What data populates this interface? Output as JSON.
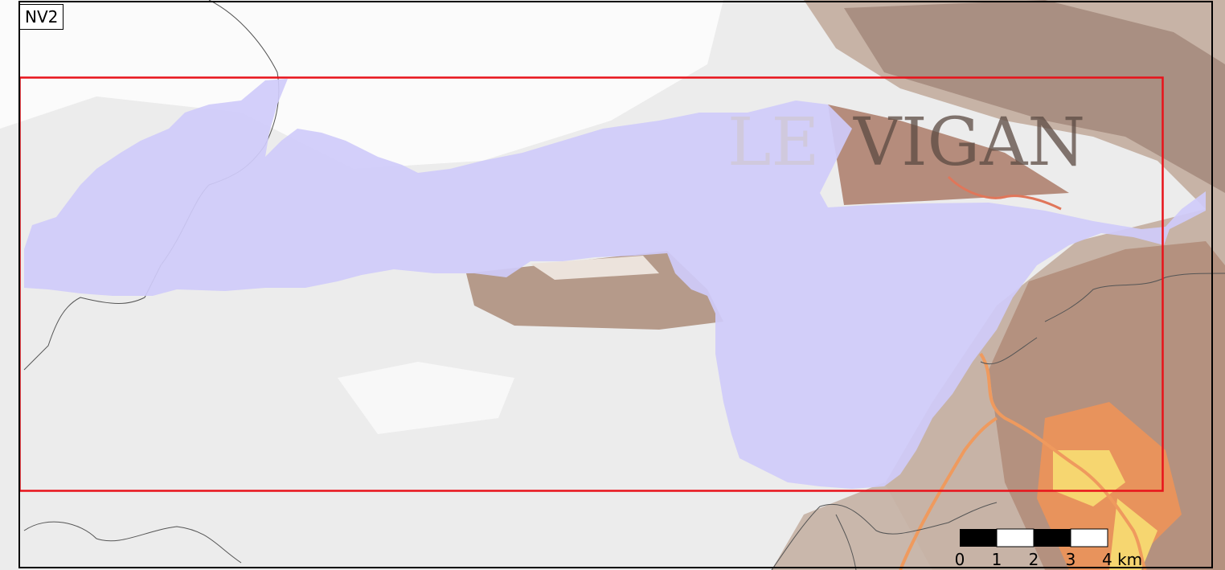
{
  "map": {
    "panel_label": "NV2",
    "town_label_part1": "LE",
    "town_label_part2": "VIGAN",
    "scale_bar": {
      "ticks": [
        "0",
        "1",
        "2",
        "3",
        "4 km"
      ]
    },
    "colors": {
      "study_area_fill": "#cbc8f7",
      "extent_box": "#e8121a",
      "boundary_lines": "#555555",
      "relief_low": "#ededed",
      "relief_mid": "#b9a69a",
      "relief_high": "#e48a5b",
      "valley_floor": "#f7d470"
    }
  }
}
